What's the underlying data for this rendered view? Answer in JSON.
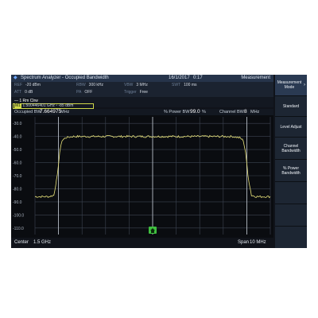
{
  "titlebar": {
    "title": "Spectrum Analyzer - Occupied Bandwidth",
    "date": "16/1/2017",
    "time": "0:17",
    "panel_title": "Measurement"
  },
  "params": {
    "ref": {
      "label": "REF",
      "value": "-20 dBm"
    },
    "att": {
      "label": "ATT",
      "value": "0 dB"
    },
    "rbw": {
      "label": "RBW",
      "value": "300 kHz"
    },
    "pa": {
      "label": "PA",
      "value": "OFF"
    },
    "vbw": {
      "label": "VBW",
      "value": "3 MHz"
    },
    "trigger": {
      "label": "Trigger",
      "value": "Free"
    },
    "swt": {
      "label": "SWT",
      "value": "100 ms"
    }
  },
  "trace_label": "— 1 Rm Clrw",
  "marker": {
    "tag": "M1",
    "freq": "1.500446401 GHz",
    "sep": "•",
    "level": "-85 dBm"
  },
  "obw": {
    "occupied_label": "Occupied BW",
    "occupied_value": "7.664975",
    "occupied_unit": "MHz",
    "pct_label": "% Power BW",
    "pct_value": "99.0",
    "pct_unit": "%",
    "channel_label": "Channel BW",
    "channel_value": "8",
    "channel_unit": "MHz"
  },
  "bottom": {
    "center_label": "Center",
    "center_value": "1.5 GHz",
    "span_label": "Span",
    "span_value": "10 MHz"
  },
  "side_buttons": [
    "Measurement Mode",
    "Standard",
    "Level Adjust",
    "Channel Bandwidth",
    "% Power Bandwidth"
  ],
  "colors": {
    "trace": "#e8e27a",
    "grid": "#3d4452",
    "accent": "#3fbf3f"
  },
  "chart_data": {
    "type": "line",
    "ytick_labels": [
      "-30.0",
      "-40.0",
      "-50.0",
      "-60.0",
      "-70.0",
      "-80.0",
      "-90.0",
      "-100.0",
      "-110.0"
    ],
    "ylim": [
      -115,
      -25
    ],
    "center_freq": "1.5 GHz",
    "span": "10 MHz",
    "series": [
      {
        "x_mhz": [
          -5.0,
          -4.7,
          -4.4,
          -4.2,
          -4.05,
          -3.95,
          -3.85,
          -3.7,
          -3.4,
          3.4,
          3.7,
          3.85,
          3.95,
          4.05,
          4.2,
          4.4,
          4.7,
          5.0
        ],
        "y_dbm": [
          -86,
          -86,
          -86,
          -85,
          -70,
          -52,
          -43,
          -41,
          -40,
          -40,
          -41,
          -43,
          -52,
          -70,
          -85,
          -86,
          -86,
          -86
        ]
      }
    ]
  }
}
